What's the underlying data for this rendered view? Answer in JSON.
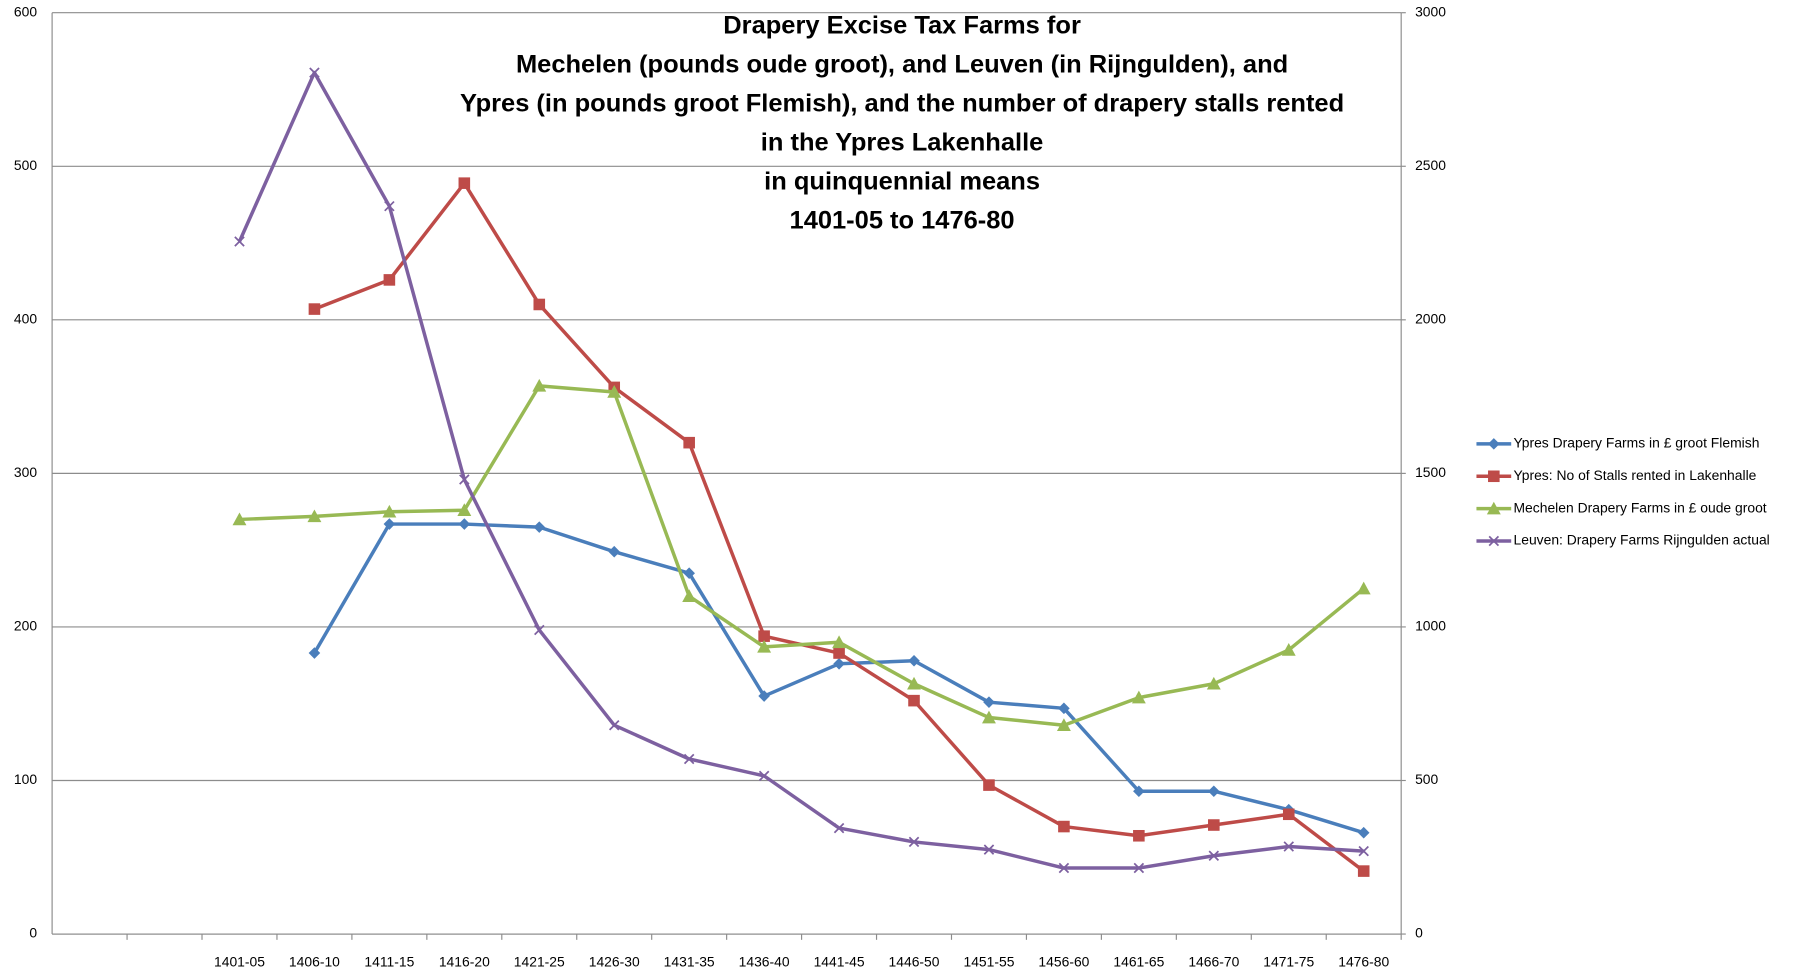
{
  "chart_data": {
    "type": "line",
    "title": [
      "Drapery Excise Tax Farms for",
      "Mechelen (pounds oude groot), and Leuven  (in Rijngulden), and",
      "Ypres (in pounds groot Flemish), and the number of drapery stalls rented",
      "in the Ypres Lakenhalle",
      "in quinquennial means",
      "1401-05 to 1476-80"
    ],
    "categories": [
      null,
      null,
      "1401-05",
      "1406-10",
      "1411-15",
      "1416-20",
      "1421-25",
      "1426-30",
      "1431-35",
      "1436-40",
      "1441-45",
      "1446-50",
      "1451-55",
      "1456-60",
      "1461-65",
      "1466-70",
      "1471-75",
      "1476-80"
    ],
    "series": [
      {
        "name": "Ypres Drapery Farms in £ groot Flemish",
        "color": "#4a7ebb",
        "marker": "diamond",
        "values": [
          null,
          null,
          null,
          183,
          267,
          267,
          265,
          249,
          235,
          155,
          176,
          178,
          151,
          147,
          93,
          93,
          81,
          66
        ]
      },
      {
        "name": "Ypres: No of Stalls  rented in Lakenhalle",
        "color": "#be4b48",
        "marker": "square",
        "values": [
          null,
          null,
          null,
          407,
          426,
          489,
          410,
          356,
          320,
          194,
          183,
          152,
          97,
          70,
          64,
          71,
          78,
          41
        ]
      },
      {
        "name": "Mechelen Drapery Farms in £ oude groot",
        "color": "#98b954",
        "marker": "triangle",
        "values": [
          null,
          null,
          270,
          272,
          275,
          276,
          357,
          353,
          220,
          187,
          190,
          163,
          141,
          136,
          154,
          163,
          185,
          225
        ]
      },
      {
        "name": "Leuven: Drapery Farms Rijngulden actual",
        "color": "#7d60a0",
        "marker": "x",
        "axis": "y2",
        "values": [
          null,
          null,
          2255,
          2805,
          2370,
          1480,
          990,
          680,
          570,
          515,
          345,
          300,
          275,
          215,
          215,
          255,
          285,
          270
        ]
      }
    ],
    "ylim": [
      0,
      600
    ],
    "yticks": [
      0,
      100,
      200,
      300,
      400,
      500,
      600
    ],
    "y2lim": [
      0,
      3000
    ],
    "y2ticks": [
      0,
      500,
      1000,
      1500,
      2000,
      2500,
      3000
    ],
    "grid": true,
    "legend": "right"
  }
}
